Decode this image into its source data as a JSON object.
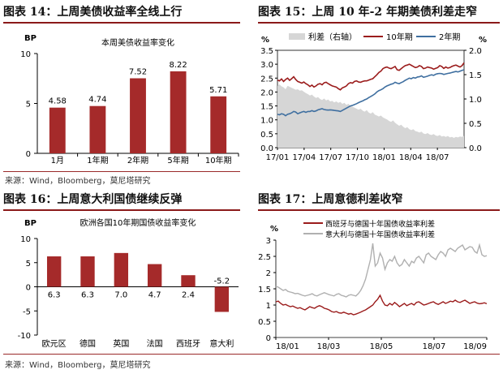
{
  "figures": {
    "f14": {
      "title": "图表 14：上周美债收益率全线上行",
      "source": "来源：Wind，Bloomberg，莫尼塔研究"
    },
    "f15": {
      "title": "图表 15：上周 10 年-2 年期美债利差走窄"
    },
    "f16": {
      "title": "图表 16：上周意大利国债继续反弹",
      "source": "来源：Wind，Bloomberg，莫尼塔研究"
    },
    "f17": {
      "title": "图表 17：上周意德利差收窄"
    }
  },
  "colors": {
    "bar": "#A52A2A",
    "line_red": "#9B1C1C",
    "line_blue": "#3F6FA0",
    "spread_fill": "#D6D6D6",
    "line_grey": "#B0B0B0"
  },
  "chart_data": [
    {
      "id": "f14",
      "type": "bar",
      "title": "本周美债收益率变化",
      "ylabel": "BP",
      "ylim": [
        0,
        10
      ],
      "yticks": [
        0,
        5,
        10
      ],
      "categories": [
        "1月",
        "1年期",
        "2年期",
        "5年期",
        "10年期"
      ],
      "values": [
        4.58,
        4.74,
        7.52,
        8.22,
        5.71
      ],
      "value_labels": [
        "4.58",
        "4.74",
        "7.52",
        "8.22",
        "5.71"
      ]
    },
    {
      "id": "f15",
      "type": "line",
      "legend_position": "top",
      "ylabel_left": "%",
      "ylabel_right": "%",
      "ylim_left": [
        0,
        3.5
      ],
      "yticks_left": [
        "0.0",
        "0.5",
        "1.0",
        "1.5",
        "2.0",
        "2.5",
        "3.0",
        "3.5"
      ],
      "ylim_right": [
        0,
        2
      ],
      "yticks_right": [
        "0.0",
        "0.5",
        "1.0",
        "1.5",
        "2.0"
      ],
      "x_ticks": [
        "17/01",
        "17/04",
        "17/07",
        "17/10",
        "18/01",
        "18/04",
        "18/07"
      ],
      "x": [
        0,
        1,
        2,
        3,
        4,
        5,
        6,
        7,
        8,
        9,
        10,
        11,
        12,
        13,
        14,
        15,
        16,
        17,
        18,
        19,
        20,
        21,
        22,
        23,
        24,
        25,
        26,
        27,
        28,
        29,
        30,
        31,
        32,
        33,
        34,
        35,
        36,
        37,
        38,
        39,
        40,
        41,
        42,
        43,
        44,
        45,
        46,
        47,
        48,
        49,
        50,
        51,
        52,
        53,
        54,
        55,
        56,
        57,
        58,
        59,
        60,
        61,
        62,
        63,
        64,
        65,
        66,
        67,
        68,
        69,
        70,
        71,
        72,
        73,
        74,
        75,
        76,
        77,
        78,
        79,
        80,
        81,
        82,
        83,
        84,
        85,
        86,
        87,
        88,
        89,
        90,
        91,
        92
      ],
      "series": [
        {
          "name": "利差（右轴）",
          "axis": "right",
          "style": "area",
          "values": [
            1.27,
            1.3,
            1.26,
            1.24,
            1.2,
            1.27,
            1.25,
            1.23,
            1.21,
            1.19,
            1.2,
            1.17,
            1.18,
            1.15,
            1.12,
            1.1,
            1.07,
            1.09,
            1.05,
            1.02,
            1.04,
            1.0,
            0.98,
            1.01,
            0.97,
            0.99,
            0.95,
            0.96,
            0.93,
            0.95,
            0.92,
            0.94,
            0.9,
            0.92,
            0.88,
            0.9,
            0.86,
            0.84,
            0.82,
            0.8,
            0.78,
            0.8,
            0.76,
            0.74,
            0.77,
            0.72,
            0.7,
            0.73,
            0.68,
            0.66,
            0.64,
            0.66,
            0.62,
            0.6,
            0.58,
            0.55,
            0.53,
            0.56,
            0.51,
            0.48,
            0.45,
            0.47,
            0.43,
            0.4,
            0.42,
            0.38,
            0.36,
            0.38,
            0.34,
            0.33,
            0.31,
            0.33,
            0.29,
            0.28,
            0.3,
            0.27,
            0.26,
            0.28,
            0.25,
            0.24,
            0.26,
            0.23,
            0.24,
            0.22,
            0.24,
            0.21,
            0.22,
            0.2,
            0.22,
            0.21,
            0.23,
            0.22,
            0.24
          ]
        },
        {
          "name": "10年期",
          "axis": "left",
          "style": "line",
          "values": [
            2.43,
            2.4,
            2.47,
            2.38,
            2.45,
            2.5,
            2.42,
            2.48,
            2.55,
            2.45,
            2.38,
            2.35,
            2.32,
            2.36,
            2.3,
            2.26,
            2.2,
            2.25,
            2.18,
            2.22,
            2.28,
            2.3,
            2.26,
            2.33,
            2.35,
            2.3,
            2.26,
            2.22,
            2.2,
            2.18,
            2.12,
            2.08,
            2.15,
            2.18,
            2.22,
            2.3,
            2.34,
            2.32,
            2.38,
            2.4,
            2.36,
            2.35,
            2.38,
            2.4,
            2.4,
            2.43,
            2.46,
            2.48,
            2.55,
            2.62,
            2.7,
            2.75,
            2.84,
            2.88,
            2.9,
            2.86,
            2.84,
            2.88,
            2.92,
            2.8,
            2.78,
            2.84,
            2.9,
            2.95,
            2.97,
            3.0,
            2.96,
            2.92,
            2.88,
            2.9,
            2.95,
            2.92,
            2.84,
            2.86,
            2.9,
            2.88,
            2.86,
            2.82,
            2.85,
            2.88,
            2.95,
            2.92,
            2.85,
            2.9,
            2.86,
            2.88,
            2.92,
            2.95,
            2.97,
            2.93,
            2.9,
            2.95,
            3.05
          ]
        },
        {
          "name": "2年期",
          "axis": "left",
          "style": "line",
          "values": [
            1.2,
            1.18,
            1.22,
            1.2,
            1.15,
            1.2,
            1.22,
            1.25,
            1.3,
            1.28,
            1.22,
            1.25,
            1.28,
            1.3,
            1.27,
            1.3,
            1.3,
            1.33,
            1.3,
            1.32,
            1.36,
            1.38,
            1.4,
            1.37,
            1.36,
            1.35,
            1.36,
            1.35,
            1.34,
            1.33,
            1.32,
            1.3,
            1.34,
            1.38,
            1.42,
            1.46,
            1.5,
            1.52,
            1.55,
            1.58,
            1.62,
            1.65,
            1.68,
            1.72,
            1.75,
            1.8,
            1.84,
            1.88,
            1.93,
            2.0,
            2.05,
            2.08,
            2.12,
            2.18,
            2.22,
            2.25,
            2.28,
            2.3,
            2.35,
            2.32,
            2.3,
            2.34,
            2.37,
            2.42,
            2.46,
            2.5,
            2.48,
            2.52,
            2.5,
            2.54,
            2.55,
            2.58,
            2.53,
            2.55,
            2.57,
            2.6,
            2.62,
            2.6,
            2.64,
            2.66,
            2.67,
            2.66,
            2.63,
            2.65,
            2.67,
            2.68,
            2.7,
            2.72,
            2.74,
            2.72,
            2.75,
            2.78,
            2.8
          ]
        }
      ]
    },
    {
      "id": "f16",
      "type": "bar",
      "title": "欧洲各国10年期国债收益率变化",
      "ylabel": "BP",
      "ylim": [
        -10,
        10
      ],
      "yticks": [
        -10,
        -5,
        0,
        5,
        10
      ],
      "categories": [
        "欧元区",
        "德国",
        "英国",
        "法国",
        "西班牙",
        "意大利"
      ],
      "values": [
        6.3,
        6.3,
        7.0,
        4.7,
        2.4,
        -5.2
      ],
      "value_labels": [
        "6.3",
        "6.3",
        "7.0",
        "4.7",
        "2.4",
        "-5.2"
      ]
    },
    {
      "id": "f17",
      "type": "line",
      "legend_position": "top",
      "ylabel": "%",
      "ylim": [
        0,
        3
      ],
      "yticks": [
        "0",
        "0.5",
        "1",
        "1.5",
        "2",
        "2.5",
        "3"
      ],
      "x_ticks": [
        "18/01",
        "18/03",
        "18/05",
        "18/07",
        "18/09"
      ],
      "x": [
        0,
        1,
        2,
        3,
        4,
        5,
        6,
        7,
        8,
        9,
        10,
        11,
        12,
        13,
        14,
        15,
        16,
        17,
        18,
        19,
        20,
        21,
        22,
        23,
        24,
        25,
        26,
        27,
        28,
        29,
        30,
        31,
        32,
        33,
        34,
        35,
        36,
        37,
        38,
        39,
        40,
        41,
        42,
        43,
        44,
        45,
        46,
        47,
        48,
        49,
        50,
        51,
        52,
        53,
        54,
        55,
        56,
        57,
        58,
        59,
        60,
        61,
        62,
        63,
        64,
        65,
        66,
        67,
        68,
        69,
        70,
        71,
        72,
        73,
        74,
        75,
        76,
        77,
        78,
        79,
        80,
        81,
        82,
        83,
        84,
        85,
        86,
        87
      ],
      "series": [
        {
          "name": "西班牙与德国十年国债收益率利差",
          "color_key": "line_red",
          "values": [
            1.1,
            1.12,
            1.05,
            1.0,
            1.02,
            0.98,
            0.95,
            0.97,
            0.93,
            0.9,
            0.92,
            0.88,
            0.85,
            0.9,
            0.95,
            0.92,
            0.9,
            0.95,
            0.98,
            0.95,
            0.9,
            0.88,
            0.85,
            0.8,
            0.78,
            0.8,
            0.76,
            0.75,
            0.78,
            0.75,
            0.72,
            0.74,
            0.7,
            0.72,
            0.75,
            0.78,
            0.82,
            0.85,
            0.9,
            0.95,
            1.0,
            1.1,
            1.18,
            1.3,
            1.12,
            1.0,
            0.98,
            1.05,
            1.0,
            1.08,
            1.02,
            0.95,
            1.0,
            1.05,
            0.98,
            1.02,
            1.05,
            1.0,
            1.08,
            1.1,
            1.05,
            1.0,
            1.02,
            1.05,
            1.08,
            1.1,
            1.05,
            1.02,
            1.06,
            1.1,
            1.05,
            1.08,
            1.12,
            1.1,
            1.15,
            1.1,
            1.08,
            1.12,
            1.15,
            1.1,
            1.05,
            1.08,
            1.1,
            1.06,
            1.04,
            1.05,
            1.07,
            1.04
          ]
        },
        {
          "name": "意大利与德国十年国债收益率利差",
          "color_key": "line_grey",
          "values": [
            1.58,
            1.55,
            1.5,
            1.45,
            1.48,
            1.42,
            1.4,
            1.38,
            1.35,
            1.36,
            1.33,
            1.3,
            1.28,
            1.3,
            1.32,
            1.35,
            1.3,
            1.28,
            1.32,
            1.35,
            1.38,
            1.35,
            1.32,
            1.3,
            1.28,
            1.33,
            1.35,
            1.3,
            1.28,
            1.25,
            1.3,
            1.32,
            1.3,
            1.28,
            1.35,
            1.45,
            1.6,
            1.8,
            2.1,
            2.4,
            2.9,
            2.2,
            2.3,
            2.6,
            2.45,
            2.1,
            2.3,
            2.4,
            2.35,
            2.5,
            2.3,
            2.2,
            2.25,
            2.4,
            2.3,
            2.2,
            2.35,
            2.3,
            2.45,
            2.5,
            2.4,
            2.3,
            2.55,
            2.6,
            2.5,
            2.45,
            2.4,
            2.55,
            2.65,
            2.6,
            2.5,
            2.7,
            2.75,
            2.7,
            2.65,
            2.75,
            2.8,
            2.85,
            2.7,
            2.75,
            2.8,
            2.78,
            2.65,
            2.6,
            2.85,
            2.55,
            2.5,
            2.52
          ]
        }
      ]
    }
  ]
}
